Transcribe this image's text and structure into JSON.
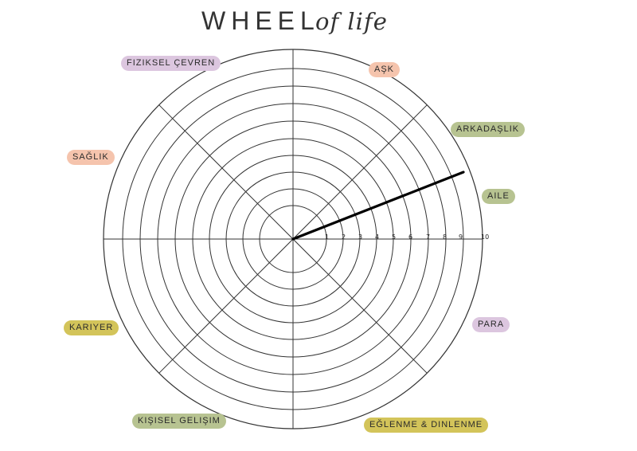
{
  "title": {
    "main": "WHEEL",
    "script": "of life"
  },
  "scale_labels": [
    "1",
    "2",
    "3",
    "4",
    "5",
    "6",
    "7",
    "8",
    "9",
    "10"
  ],
  "categories": [
    {
      "label": "FIZIKSEL ÇEVREN",
      "color": "#dcc6df"
    },
    {
      "label": "AŞK",
      "color": "#f5c4ad"
    },
    {
      "label": "ARKADAŞLIK",
      "color": "#b7c391"
    },
    {
      "label": "AILE",
      "color": "#b7c391"
    },
    {
      "label": "SAĞLIK",
      "color": "#f5c4ad"
    },
    {
      "label": "PARA",
      "color": "#dcc6df"
    },
    {
      "label": "KARIYER",
      "color": "#d3c45a"
    },
    {
      "label": "KIŞISEL GELIŞIM",
      "color": "#b7c391"
    },
    {
      "label": "EĞLENME & DINLENME",
      "color": "#d3c45a"
    }
  ]
}
